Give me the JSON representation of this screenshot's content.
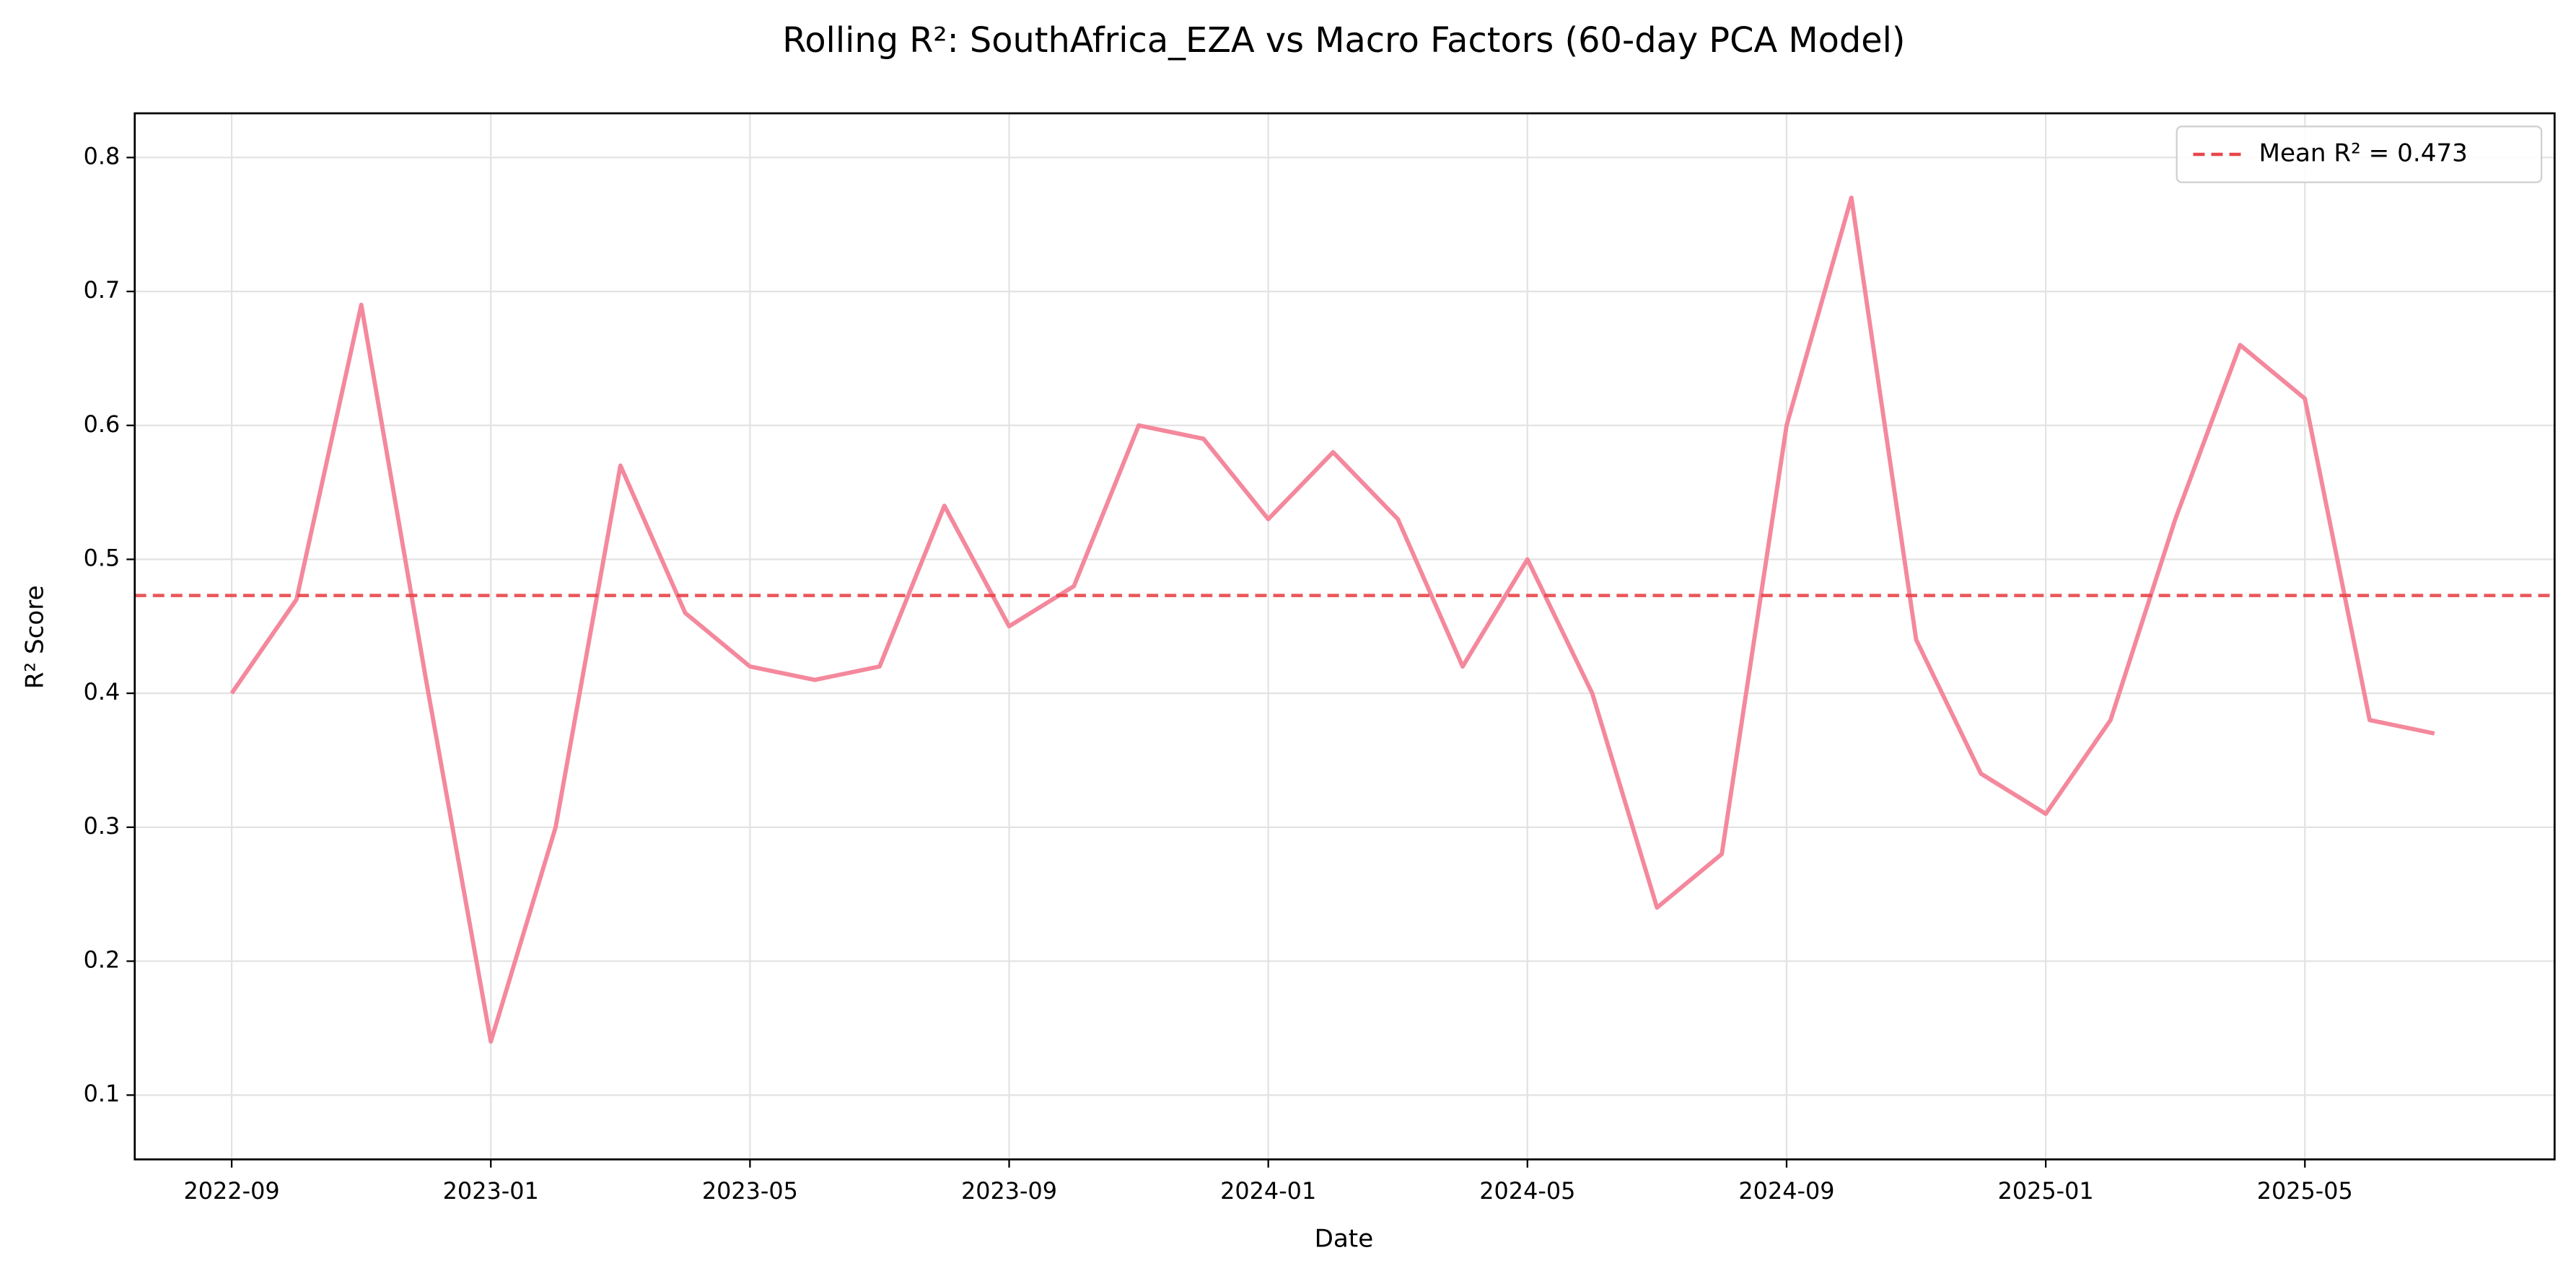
{
  "chart_data": {
    "type": "line",
    "title": "Rolling R²: SouthAfrica_EZA vs Macro Factors (60-day PCA Model)",
    "x_label": "Date",
    "y_label": "R² Score",
    "x": [
      "2022-09",
      "2022-10",
      "2022-11",
      "2022-12",
      "2023-01",
      "2023-02",
      "2023-03",
      "2023-04",
      "2023-05",
      "2023-06",
      "2023-07",
      "2023-08",
      "2023-09",
      "2023-10",
      "2023-11",
      "2023-12",
      "2024-01",
      "2024-02",
      "2024-03",
      "2024-04",
      "2024-05",
      "2024-06",
      "2024-07",
      "2024-08",
      "2024-09",
      "2024-10",
      "2024-11",
      "2024-12",
      "2025-01",
      "2025-02",
      "2025-03",
      "2025-04",
      "2025-05",
      "2025-06",
      "2025-07"
    ],
    "values": [
      0.4,
      0.47,
      0.69,
      0.41,
      0.14,
      0.3,
      0.57,
      0.46,
      0.42,
      0.41,
      0.42,
      0.54,
      0.45,
      0.48,
      0.6,
      0.59,
      0.53,
      0.58,
      0.53,
      0.42,
      0.5,
      0.4,
      0.24,
      0.28,
      0.6,
      0.77,
      0.44,
      0.34,
      0.31,
      0.38,
      0.53,
      0.66,
      0.62,
      0.38,
      0.37
    ],
    "color": "#f4889c",
    "reference_line": {
      "value": 0.473,
      "label": "Mean R² = 0.473",
      "color": "#e8454a",
      "style": "dashed"
    },
    "ylim": [
      0.052,
      0.833
    ],
    "yticks": [
      0.1,
      0.2,
      0.3,
      0.4,
      0.5,
      0.6,
      0.7,
      0.8
    ],
    "xticks": [
      "2022-09",
      "2023-01",
      "2023-05",
      "2023-09",
      "2024-01",
      "2024-05",
      "2024-09",
      "2025-01",
      "2025-05"
    ],
    "grid": true,
    "legend": "upper right"
  }
}
